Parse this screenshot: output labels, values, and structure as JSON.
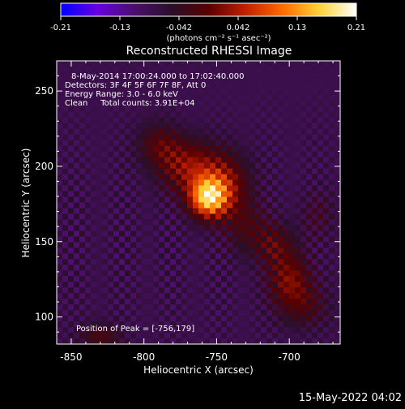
{
  "colorbar": {
    "tick_labels": [
      "-0.21",
      "-0.13",
      "-0.042",
      "0.042",
      "0.13",
      "0.21"
    ],
    "units": "(photons cm⁻² s⁻¹ asec⁻²)",
    "range": [
      -0.21,
      0.21
    ],
    "colormap": [
      "#0000ff",
      "#6a00e0",
      "#4b0f6a",
      "#2a0f2a",
      "#5a0000",
      "#c02000",
      "#ff6a00",
      "#ffd23a",
      "#ffffff"
    ]
  },
  "image": {
    "info_lines": [
      "8-May-2014 17:00:24.000 to 17:02:40.000",
      "Detectors: 3F 4F 5F 6F 7F 8F, Att 0",
      "Energy Range: 3.0 - 6.0 keV",
      "Clean     Total counts: 3.91E+04"
    ],
    "peak_label": "Position of Peak = [-756,179]"
  },
  "footer": {
    "timestamp": "15-May-2022 04:02"
  },
  "chart_data": {
    "type": "heatmap",
    "title": "Reconstructed RHESSI Image",
    "xlabel": "Heliocentric X (arcsec)",
    "ylabel": "Heliocentric Y (arcsec)",
    "xlim": [
      -860,
      -665
    ],
    "ylim": [
      82,
      270
    ],
    "xticks": [
      -850,
      -800,
      -750,
      -700
    ],
    "yticks": [
      100,
      150,
      200,
      250
    ],
    "peak": [
      -756,
      179
    ],
    "sources": [
      {
        "x": -756,
        "y": 179,
        "sx": 9,
        "sy": 9,
        "amp": 0.21
      },
      {
        "x": -770,
        "y": 200,
        "sx": 14,
        "sy": 12,
        "amp": 0.1
      },
      {
        "x": -745,
        "y": 188,
        "sx": 12,
        "sy": 14,
        "amp": 0.1
      },
      {
        "x": -790,
        "y": 215,
        "sx": 10,
        "sy": 10,
        "amp": 0.06
      },
      {
        "x": -730,
        "y": 160,
        "sx": 10,
        "sy": 12,
        "amp": 0.05
      },
      {
        "x": -710,
        "y": 148,
        "sx": 10,
        "sy": 10,
        "amp": 0.06
      },
      {
        "x": -700,
        "y": 125,
        "sx": 10,
        "sy": 12,
        "amp": 0.09
      },
      {
        "x": -690,
        "y": 107,
        "sx": 12,
        "sy": 10,
        "amp": 0.05
      },
      {
        "x": -830,
        "y": 87,
        "sx": 10,
        "sy": 6,
        "amp": 0.06
      },
      {
        "x": -680,
        "y": 168,
        "sx": 8,
        "sy": 10,
        "amp": 0.03
      }
    ],
    "background_level": -0.08
  }
}
